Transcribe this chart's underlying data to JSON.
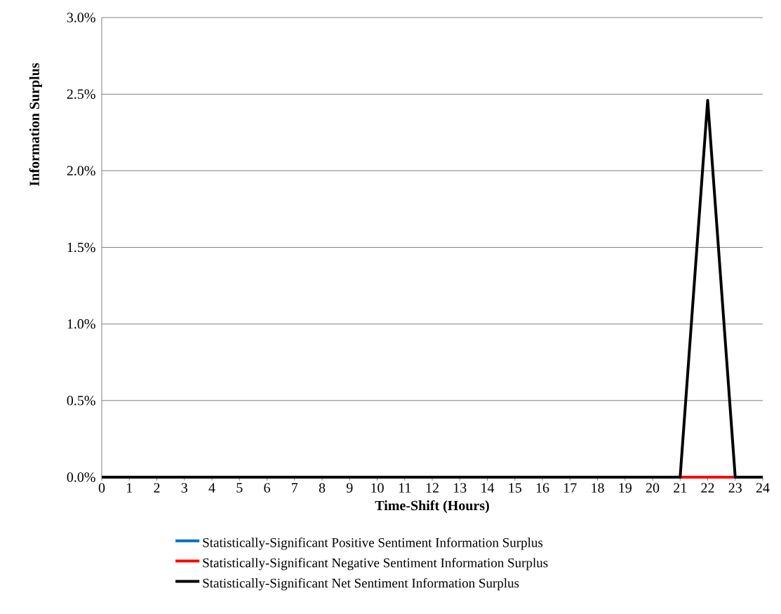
{
  "chart_data": {
    "type": "line",
    "xlabel": "Time-Shift  (Hours)",
    "ylabel": "Information  Surplus",
    "x": [
      0,
      1,
      2,
      3,
      4,
      5,
      6,
      7,
      8,
      9,
      10,
      11,
      12,
      13,
      14,
      15,
      16,
      17,
      18,
      19,
      20,
      21,
      22,
      23,
      24
    ],
    "series": [
      {
        "name": "Statistically-Significant Positive Sentiment Information Surplus",
        "color": "#0070c0",
        "values": [
          null,
          null,
          null,
          null,
          null,
          null,
          null,
          null,
          null,
          null,
          null,
          null,
          null,
          null,
          null,
          null,
          null,
          null,
          null,
          null,
          null,
          null,
          null,
          null,
          null
        ]
      },
      {
        "name": "Statistically-Significant Negative Sentiment Information Surplus",
        "color": "#ff0000",
        "values": [
          null,
          null,
          null,
          null,
          null,
          null,
          null,
          null,
          null,
          null,
          null,
          null,
          null,
          null,
          null,
          null,
          null,
          null,
          null,
          null,
          null,
          0,
          0,
          0,
          null
        ]
      },
      {
        "name": "Statistically-Significant Net Sentiment Information Surplus",
        "color": "#000000",
        "values": [
          0,
          0,
          0,
          0,
          0,
          0,
          0,
          0,
          0,
          0,
          0,
          0,
          0,
          0,
          0,
          0,
          0,
          0,
          0,
          0,
          0,
          0,
          2.46,
          0,
          0
        ]
      }
    ],
    "xlim": [
      0,
      24
    ],
    "xticks": [
      0,
      1,
      2,
      3,
      4,
      5,
      6,
      7,
      8,
      9,
      10,
      11,
      12,
      13,
      14,
      15,
      16,
      17,
      18,
      19,
      20,
      21,
      22,
      23,
      24
    ],
    "ylim": [
      0,
      3
    ],
    "yticks": [
      {
        "value": 0,
        "label": "0.0%"
      },
      {
        "value": 0.5,
        "label": "0.5%"
      },
      {
        "value": 1,
        "label": "1.0%"
      },
      {
        "value": 1.5,
        "label": "1.5%"
      },
      {
        "value": 2,
        "label": "2.0%"
      },
      {
        "value": 2.5,
        "label": "2.5%"
      },
      {
        "value": 3,
        "label": "3.0%"
      }
    ],
    "grid": "y",
    "legend": "bottom",
    "marker": "none",
    "line_style": "solid"
  }
}
